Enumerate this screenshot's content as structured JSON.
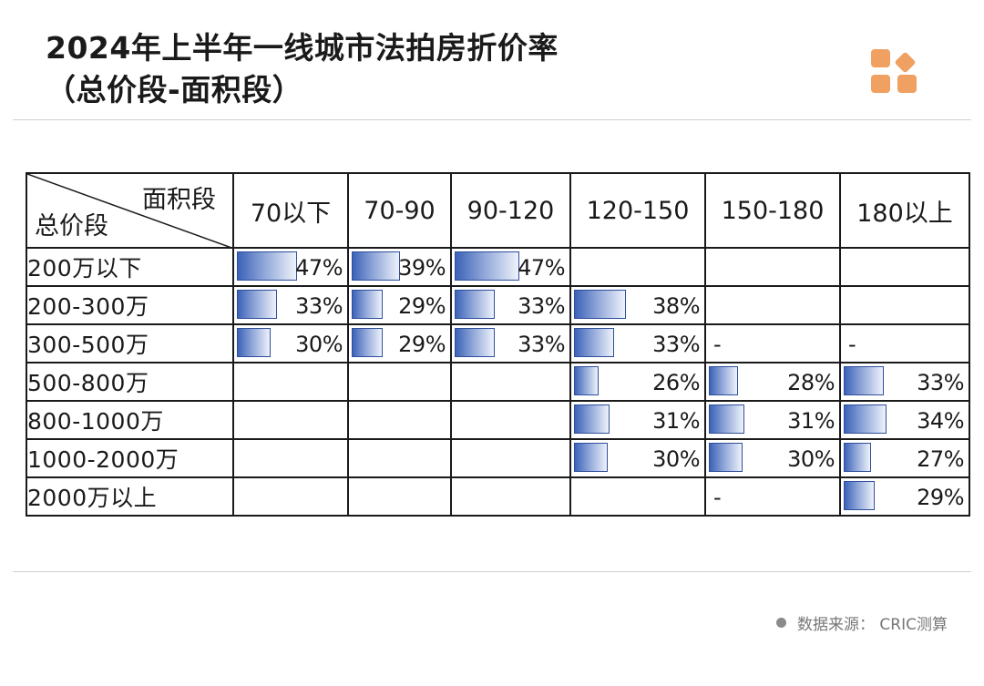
{
  "title": {
    "line1": "2024年上半年一线城市法拍房折价率",
    "line2": "（总价段-面积段）"
  },
  "source": "数据来源：  CRIC测算",
  "colors": {
    "bar_dark": "#3c62b8",
    "bar_light": "#eef2fb",
    "bar_border": "#2e4f9a",
    "logo_orange": "#f0a060"
  },
  "chart_data": {
    "type": "table",
    "corner_top": "面积段",
    "corner_bottom": "总价段",
    "columns": [
      "70以下",
      "70-90",
      "90-120",
      "120-150",
      "150-180",
      "180以上"
    ],
    "rows": [
      {
        "label": "200万以下",
        "cells": [
          "47%",
          "39%",
          "47%",
          "",
          "",
          ""
        ],
        "values": [
          47,
          39,
          47,
          null,
          null,
          null
        ]
      },
      {
        "label": "200-300万",
        "cells": [
          "33%",
          "29%",
          "33%",
          "38%",
          "",
          ""
        ],
        "values": [
          33,
          29,
          33,
          38,
          null,
          null
        ]
      },
      {
        "label": "300-500万",
        "cells": [
          "30%",
          "29%",
          "33%",
          "33%",
          "-",
          "-"
        ],
        "values": [
          30,
          29,
          33,
          33,
          null,
          null
        ]
      },
      {
        "label": "500-800万",
        "cells": [
          "",
          "",
          "",
          "26%",
          "28%",
          "33%"
        ],
        "values": [
          null,
          null,
          null,
          26,
          28,
          33
        ]
      },
      {
        "label": "800-1000万",
        "cells": [
          "",
          "",
          "",
          "31%",
          "31%",
          "34%"
        ],
        "values": [
          null,
          null,
          null,
          31,
          31,
          34
        ]
      },
      {
        "label": "1000-2000万",
        "cells": [
          "",
          "",
          "",
          "30%",
          "30%",
          "27%"
        ],
        "values": [
          null,
          null,
          null,
          30,
          30,
          27
        ]
      },
      {
        "label": "2000万以上",
        "cells": [
          "",
          "",
          "",
          "",
          "-",
          "29%"
        ],
        "values": [
          null,
          null,
          null,
          null,
          null,
          29
        ]
      }
    ]
  }
}
